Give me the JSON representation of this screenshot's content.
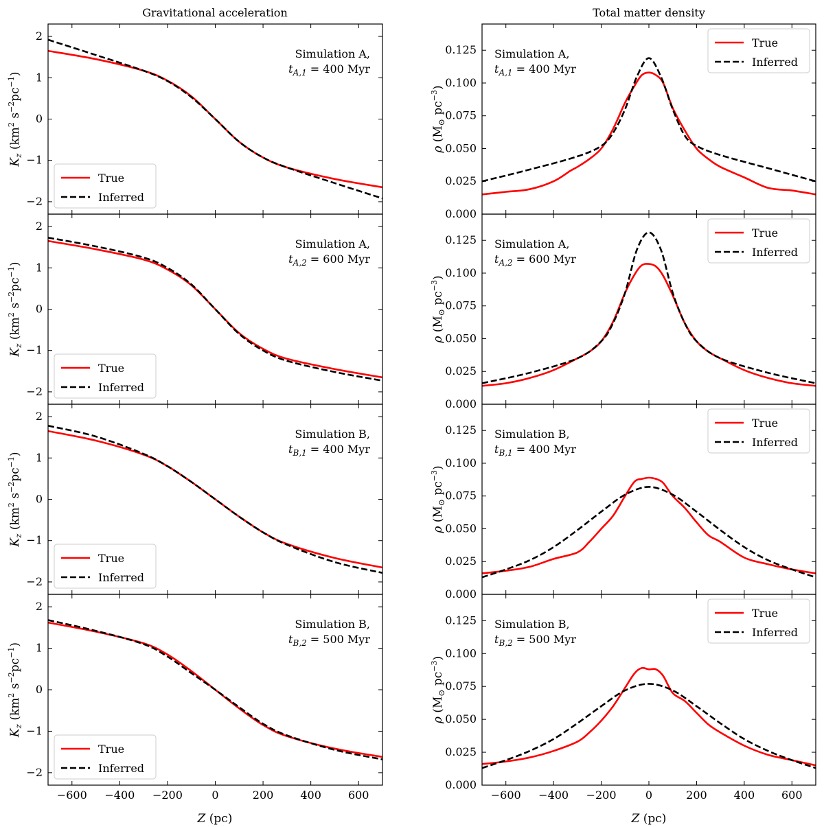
{
  "chart_data": {
    "type": "line",
    "columns": [
      {
        "key": "acc",
        "title": "Gravitational acceleration",
        "ylabel_html": "K<tspan font-style='italic' baseline-shift='sub' font-size='12'>z</tspan> (km<tspan baseline-shift='super' font-size='11'>2</tspan> s<tspan baseline-shift='super' font-size='11'>−2</tspan>pc<tspan baseline-shift='super' font-size='11'>−1</tspan>)",
        "ylabel": "K_z (km^2 s^-2 pc^-1)",
        "ylim": [
          -2.3,
          2.3
        ],
        "yticks": [
          "2",
          "1",
          "0",
          "−1",
          "−2"
        ],
        "ytick_values": [
          2,
          1,
          0,
          -1,
          -2
        ]
      },
      {
        "key": "rho",
        "title": "Total matter density",
        "ylabel": "ρ (M⊙ pc^-3)",
        "ylim": [
          0,
          0.145
        ],
        "yticks": [
          "0.125",
          "0.100",
          "0.075",
          "0.050",
          "0.025",
          "0.000"
        ],
        "ytick_values": [
          0.125,
          0.1,
          0.075,
          0.05,
          0.025,
          0.0
        ]
      }
    ],
    "xlabel": "Z (pc)",
    "xlim": [
      -700,
      700
    ],
    "xticks": [
      "−600",
      "−400",
      "−200",
      "0",
      "200",
      "400",
      "600"
    ],
    "xtick_values": [
      -600,
      -400,
      -200,
      0,
      200,
      400,
      600
    ],
    "legend": {
      "true": "True",
      "inferred": "Inferred"
    },
    "series_colors": {
      "true": "#ff0000",
      "inferred": "#000000"
    },
    "panels": [
      {
        "row": 0,
        "annotation": {
          "line1": "Simulation A,",
          "sym": "t",
          "sub": "A,1",
          "rest": " = 400 Myr"
        },
        "acc": {
          "true": {
            "z": [
              -700,
              -500,
              -300,
              -200,
              -100,
              0,
              100,
              200,
              300,
              500,
              700
            ],
            "v": [
              1.65,
              1.45,
              1.17,
              0.93,
              0.55,
              0,
              -0.55,
              -0.93,
              -1.17,
              -1.45,
              -1.65
            ]
          },
          "inferred": {
            "z": [
              -700,
              -500,
              -300,
              -200,
              -100,
              0,
              100,
              200,
              300,
              500,
              700
            ],
            "v": [
              1.92,
              1.55,
              1.17,
              0.92,
              0.53,
              0,
              -0.55,
              -0.93,
              -1.17,
              -1.55,
              -1.92
            ]
          }
        },
        "rho": {
          "true": {
            "z": [
              -700,
              -600,
              -500,
              -400,
              -330,
              -300,
              -250,
              -200,
              -150,
              -100,
              -60,
              -30,
              0,
              30,
              60,
              100,
              150,
              200,
              250,
              300,
              400,
              500,
              600,
              700
            ],
            "v": [
              0.015,
              0.017,
              0.019,
              0.025,
              0.033,
              0.036,
              0.042,
              0.05,
              0.065,
              0.085,
              0.098,
              0.106,
              0.108,
              0.106,
              0.1,
              0.081,
              0.064,
              0.05,
              0.042,
              0.036,
              0.028,
              0.02,
              0.018,
              0.015
            ]
          },
          "inferred": {
            "z": [
              -700,
              -500,
              -300,
              -200,
              -150,
              -100,
              -50,
              0,
              50,
              100,
              150,
              200,
              300,
              500,
              700
            ],
            "v": [
              0.025,
              0.034,
              0.044,
              0.052,
              0.062,
              0.08,
              0.105,
              0.119,
              0.105,
              0.08,
              0.06,
              0.052,
              0.045,
              0.035,
              0.025
            ]
          }
        }
      },
      {
        "row": 1,
        "annotation": {
          "line1": "Simulation A,",
          "sym": "t",
          "sub": "A,2",
          "rest": " = 600 Myr"
        },
        "acc": {
          "true": {
            "z": [
              -700,
              -500,
              -300,
              -200,
              -100,
              0,
              100,
              200,
              300,
              500,
              700
            ],
            "v": [
              1.65,
              1.45,
              1.2,
              0.96,
              0.58,
              0,
              -0.58,
              -0.96,
              -1.2,
              -1.45,
              -1.65
            ]
          },
          "inferred": {
            "z": [
              -700,
              -500,
              -300,
              -200,
              -100,
              0,
              100,
              200,
              300,
              500,
              700
            ],
            "v": [
              1.73,
              1.52,
              1.25,
              1.0,
              0.6,
              0,
              -0.6,
              -1.0,
              -1.25,
              -1.52,
              -1.73
            ]
          }
        },
        "rho": {
          "true": {
            "z": [
              -700,
              -600,
              -500,
              -400,
              -300,
              -250,
              -200,
              -150,
              -100,
              -60,
              -30,
              0,
              30,
              60,
              100,
              150,
              200,
              250,
              300,
              400,
              500,
              600,
              700
            ],
            "v": [
              0.014,
              0.016,
              0.02,
              0.026,
              0.035,
              0.04,
              0.048,
              0.063,
              0.085,
              0.099,
              0.106,
              0.107,
              0.105,
              0.098,
              0.083,
              0.062,
              0.048,
              0.04,
              0.035,
              0.026,
              0.02,
              0.016,
              0.014
            ]
          },
          "inferred": {
            "z": [
              -700,
              -500,
              -300,
              -200,
              -150,
              -100,
              -50,
              0,
              50,
              100,
              150,
              200,
              300,
              500,
              700
            ],
            "v": [
              0.016,
              0.024,
              0.035,
              0.048,
              0.062,
              0.085,
              0.118,
              0.131,
              0.118,
              0.085,
              0.062,
              0.048,
              0.035,
              0.024,
              0.016
            ]
          }
        }
      },
      {
        "row": 2,
        "annotation": {
          "line1": "Simulation B,",
          "sym": "t",
          "sub": "B,1",
          "rest": " = 400 Myr"
        },
        "acc": {
          "true": {
            "z": [
              -700,
              -500,
              -300,
              -200,
              -100,
              0,
              100,
              200,
              300,
              500,
              700
            ],
            "v": [
              1.65,
              1.42,
              1.08,
              0.8,
              0.42,
              0,
              -0.42,
              -0.8,
              -1.08,
              -1.42,
              -1.65
            ]
          },
          "inferred": {
            "z": [
              -700,
              -500,
              -300,
              -200,
              -100,
              0,
              100,
              200,
              300,
              500,
              700
            ],
            "v": [
              1.78,
              1.52,
              1.1,
              0.8,
              0.42,
              0,
              -0.42,
              -0.8,
              -1.1,
              -1.52,
              -1.78
            ]
          }
        },
        "rho": {
          "true": {
            "z": [
              -700,
              -600,
              -500,
              -400,
              -300,
              -250,
              -200,
              -150,
              -100,
              -60,
              -30,
              0,
              30,
              60,
              100,
              150,
              200,
              250,
              300,
              400,
              500,
              600,
              700
            ],
            "v": [
              0.016,
              0.018,
              0.021,
              0.027,
              0.032,
              0.04,
              0.05,
              0.06,
              0.075,
              0.086,
              0.088,
              0.089,
              0.088,
              0.085,
              0.075,
              0.066,
              0.055,
              0.045,
              0.04,
              0.028,
              0.023,
              0.019,
              0.016
            ]
          },
          "inferred": {
            "z": [
              -700,
              -600,
              -500,
              -400,
              -300,
              -200,
              -100,
              0,
              100,
              200,
              300,
              400,
              500,
              600,
              700
            ],
            "v": [
              0.013,
              0.019,
              0.026,
              0.036,
              0.049,
              0.063,
              0.076,
              0.082,
              0.076,
              0.063,
              0.049,
              0.036,
              0.026,
              0.019,
              0.013
            ]
          }
        }
      },
      {
        "row": 3,
        "annotation": {
          "line1": "Simulation B,",
          "sym": "t",
          "sub": "B,2",
          "rest": " = 500 Myr"
        },
        "acc": {
          "true": {
            "z": [
              -700,
              -500,
              -300,
              -200,
              -100,
              0,
              100,
              200,
              300,
              500,
              700
            ],
            "v": [
              1.62,
              1.4,
              1.12,
              0.85,
              0.45,
              0,
              -0.45,
              -0.85,
              -1.12,
              -1.42,
              -1.62
            ]
          },
          "inferred": {
            "z": [
              -700,
              -500,
              -300,
              -200,
              -100,
              0,
              100,
              200,
              300,
              500,
              700
            ],
            "v": [
              1.68,
              1.42,
              1.1,
              0.8,
              0.4,
              0,
              -0.42,
              -0.82,
              -1.1,
              -1.45,
              -1.68
            ]
          }
        },
        "rho": {
          "true": {
            "z": [
              -700,
              -600,
              -500,
              -400,
              -300,
              -250,
              -200,
              -150,
              -100,
              -60,
              -30,
              0,
              30,
              60,
              100,
              150,
              200,
              250,
              300,
              400,
              500,
              600,
              700
            ],
            "v": [
              0.016,
              0.018,
              0.021,
              0.026,
              0.033,
              0.04,
              0.049,
              0.06,
              0.074,
              0.085,
              0.089,
              0.088,
              0.088,
              0.083,
              0.07,
              0.064,
              0.055,
              0.046,
              0.04,
              0.03,
              0.023,
              0.019,
              0.015
            ]
          },
          "inferred": {
            "z": [
              -700,
              -600,
              -500,
              -400,
              -300,
              -200,
              -100,
              0,
              100,
              200,
              300,
              400,
              500,
              600,
              700
            ],
            "v": [
              0.013,
              0.019,
              0.026,
              0.035,
              0.047,
              0.06,
              0.072,
              0.077,
              0.072,
              0.06,
              0.047,
              0.035,
              0.026,
              0.019,
              0.013
            ]
          }
        }
      }
    ]
  }
}
